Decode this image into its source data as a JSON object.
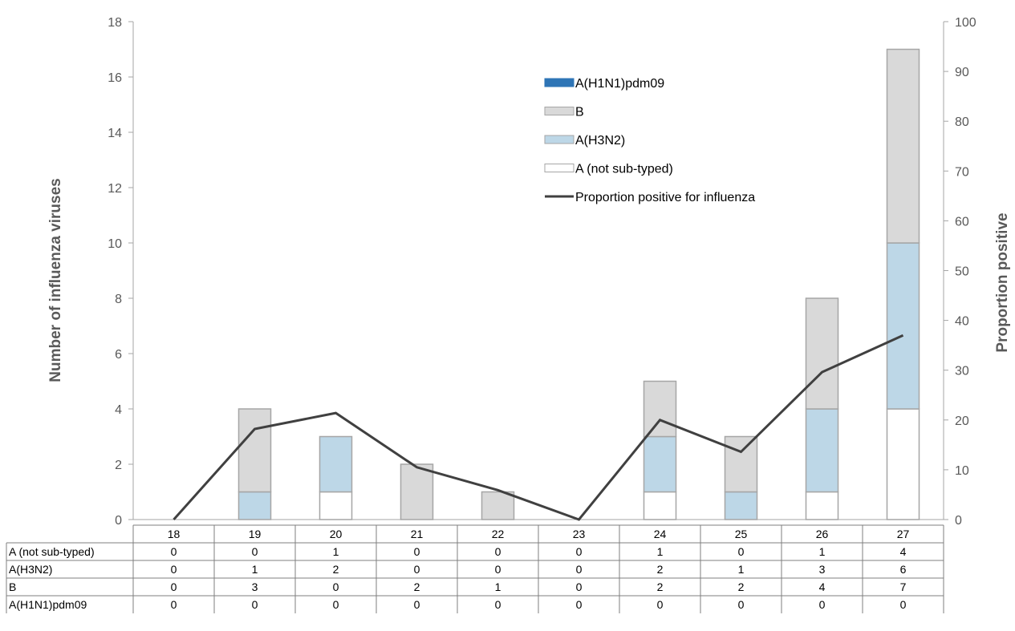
{
  "chart_data": {
    "type": "bar",
    "categories": [
      "18",
      "19",
      "20",
      "21",
      "22",
      "23",
      "24",
      "25",
      "26",
      "27"
    ],
    "series": [
      {
        "name": "A (not sub-typed)",
        "values": [
          0,
          0,
          1,
          0,
          0,
          0,
          1,
          0,
          1,
          4
        ],
        "color": "#ffffff",
        "stroke": "#a6a6a6"
      },
      {
        "name": "A(H3N2)",
        "values": [
          0,
          1,
          2,
          0,
          0,
          0,
          2,
          1,
          3,
          6
        ],
        "color": "#bdd7e7",
        "stroke": "#a6a6a6"
      },
      {
        "name": "B",
        "values": [
          0,
          3,
          0,
          2,
          1,
          0,
          2,
          2,
          4,
          7
        ],
        "color": "#d9d9d9",
        "stroke": "#a6a6a6"
      },
      {
        "name": "A(H1N1)pdm09",
        "values": [
          0,
          0,
          0,
          0,
          0,
          0,
          0,
          0,
          0,
          0
        ],
        "color": "#2e75b6",
        "stroke": "#2e75b6"
      }
    ],
    "line_series": {
      "name": "Proportion positive for influenza",
      "values": [
        0,
        18.2,
        21.4,
        10.5,
        5.9,
        0,
        20.0,
        13.6,
        29.6,
        37.0
      ],
      "color": "#404040",
      "axis": "right"
    },
    "ylabel": "Number of influenza viruses",
    "ylim": [
      0,
      18
    ],
    "yticks": [
      0,
      2,
      4,
      6,
      8,
      10,
      12,
      14,
      16,
      18
    ],
    "y2label": "Proportion positive",
    "y2lim": [
      0,
      100
    ],
    "y2ticks": [
      0,
      10,
      20,
      30,
      40,
      50,
      60,
      70,
      80,
      90,
      100
    ],
    "grid": false,
    "legend_position": "top-right",
    "legend_order": [
      "A(H1N1)pdm09",
      "B",
      "A(H3N2)",
      "A (not sub-typed)",
      "Proportion positive for influenza"
    ],
    "data_table": {
      "row_order": [
        "A (not sub-typed)",
        "A(H3N2)",
        "B",
        "A(H1N1)pdm09"
      ]
    }
  }
}
